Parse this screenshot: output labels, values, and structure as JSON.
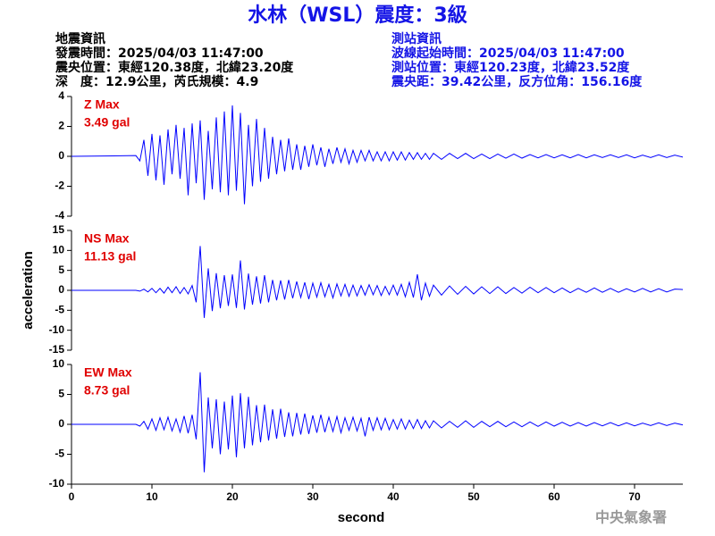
{
  "header": {
    "title": "水林（WSL）震度：3級",
    "left": [
      "地震資訊",
      "發震時間：2025/04/03 11:47:00",
      "震央位置：東經120.38度，北緯23.20度",
      "深　度：12.9公里，芮氏規模：4.9"
    ],
    "right": [
      "測站資訊",
      "波線起始時間：2025/04/03 11:47:00",
      "測站位置：東經120.23度，北緯23.52度",
      "震央距：39.42公里，反方位角：156.16度"
    ]
  },
  "footer": "中央氣象署",
  "chart_data": [
    {
      "type": "line",
      "color": "#0000ff",
      "annotations": [
        "Z Max",
        "3.49 gal"
      ],
      "xlim": [
        0,
        76
      ],
      "ylim": [
        -4,
        4
      ],
      "yticks": [
        -4,
        -2,
        0,
        2,
        4
      ],
      "x": [
        0,
        8,
        8.5,
        9,
        9.5,
        10,
        10.5,
        11,
        11.5,
        12,
        12.5,
        13,
        13.5,
        14,
        14.5,
        15,
        15.5,
        16,
        16.5,
        17,
        17.5,
        18,
        18.5,
        19,
        19.5,
        20,
        20.5,
        21,
        21.5,
        22,
        22.5,
        23,
        23.5,
        24,
        24.5,
        25,
        25.5,
        26,
        26.5,
        27,
        27.5,
        28,
        28.5,
        29,
        29.5,
        30,
        30.5,
        31,
        31.5,
        32,
        32.5,
        33,
        33.5,
        34,
        34.5,
        35,
        35.5,
        36,
        36.5,
        37,
        37.5,
        38,
        38.5,
        39,
        39.5,
        40,
        40.5,
        41,
        41.5,
        42,
        42.5,
        43,
        43.5,
        44,
        44.5,
        45,
        46,
        47,
        48,
        49,
        50,
        51,
        52,
        53,
        54,
        55,
        56,
        57,
        58,
        59,
        60,
        61,
        62,
        63,
        64,
        65,
        66,
        67,
        68,
        69,
        70,
        71,
        72,
        73,
        74,
        75,
        76
      ],
      "values": [
        0,
        0.05,
        -0.3,
        1.1,
        -1.3,
        1.5,
        -1.6,
        1.4,
        -1.9,
        1.8,
        -1.2,
        2.1,
        -1.5,
        1.9,
        -2.6,
        2.2,
        -1.8,
        2.4,
        -2.9,
        1.7,
        -2.2,
        2.6,
        -2.4,
        3.0,
        -2.6,
        3.4,
        -2.3,
        2.9,
        -3.2,
        2.1,
        -2.0,
        2.5,
        -1.7,
        1.9,
        -1.5,
        1.3,
        -1.2,
        1.1,
        -1.0,
        1.2,
        -0.9,
        0.8,
        -0.9,
        0.7,
        -0.7,
        0.8,
        -0.6,
        0.6,
        -0.7,
        0.5,
        -0.5,
        0.6,
        -0.4,
        0.5,
        -0.5,
        0.4,
        -0.4,
        0.4,
        -0.3,
        0.4,
        -0.3,
        0.3,
        -0.3,
        0.3,
        -0.3,
        0.3,
        -0.25,
        0.3,
        -0.25,
        0.25,
        -0.2,
        0.25,
        -0.2,
        0.2,
        -0.2,
        0.2,
        -0.2,
        0.2,
        -0.15,
        0.2,
        -0.15,
        0.15,
        -0.15,
        0.15,
        -0.12,
        0.15,
        -0.12,
        0.12,
        -0.1,
        0.12,
        -0.1,
        0.1,
        -0.1,
        0.12,
        -0.1,
        0.1,
        -0.08,
        0.1,
        -0.08,
        0.1,
        -0.1,
        0.08,
        -0.08,
        0.1,
        -0.08,
        0.08,
        -0.05
      ]
    },
    {
      "type": "line",
      "color": "#0000ff",
      "annotations": [
        "NS Max",
        "11.13 gal"
      ],
      "y_label": "acceleration",
      "xlim": [
        0,
        76
      ],
      "ylim": [
        -15,
        15
      ],
      "yticks": [
        -15,
        -10,
        -5,
        0,
        5,
        10,
        15
      ],
      "x": [
        0,
        8,
        8.5,
        9,
        9.5,
        10,
        10.5,
        11,
        11.5,
        12,
        12.5,
        13,
        13.5,
        14,
        14.5,
        15,
        15.5,
        16,
        16.5,
        17,
        17.5,
        18,
        18.5,
        19,
        19.5,
        20,
        20.5,
        21,
        21.5,
        22,
        22.5,
        23,
        23.5,
        24,
        24.5,
        25,
        25.5,
        26,
        26.5,
        27,
        27.5,
        28,
        28.5,
        29,
        29.5,
        30,
        30.5,
        31,
        31.5,
        32,
        32.5,
        33,
        33.5,
        34,
        34.5,
        35,
        35.5,
        36,
        36.5,
        37,
        37.5,
        38,
        38.5,
        39,
        39.5,
        40,
        40.5,
        41,
        41.5,
        42,
        42.5,
        43,
        43.5,
        44,
        44.5,
        45,
        46,
        47,
        48,
        49,
        50,
        51,
        52,
        53,
        54,
        55,
        56,
        57,
        58,
        59,
        60,
        61,
        62,
        63,
        64,
        65,
        66,
        67,
        68,
        69,
        70,
        71,
        72,
        73,
        74,
        75,
        76
      ],
      "values": [
        0,
        0,
        -0.2,
        0.3,
        -0.4,
        0.5,
        -0.6,
        0.5,
        -0.7,
        0.8,
        -0.6,
        0.9,
        -0.8,
        0.7,
        -0.9,
        1.2,
        -3.0,
        11.1,
        -6.9,
        5.5,
        -5.2,
        4.3,
        -4.5,
        3.8,
        -3.9,
        4.0,
        -4.4,
        7.5,
        -4.8,
        4.2,
        -3.6,
        3.5,
        -3.3,
        3.8,
        -3.0,
        2.6,
        -2.5,
        2.5,
        -2.3,
        2.6,
        -2.0,
        2.2,
        -1.8,
        2.0,
        -2.2,
        1.8,
        -1.7,
        1.9,
        -1.6,
        1.5,
        -1.9,
        1.6,
        -1.4,
        1.5,
        -1.5,
        1.3,
        -1.4,
        1.2,
        -1.2,
        1.4,
        -1.1,
        1.2,
        -1.3,
        1.0,
        -1.1,
        1.3,
        -1.2,
        1.5,
        -1.6,
        2.0,
        -1.8,
        4.0,
        -2.5,
        1.8,
        -1.5,
        1.3,
        -1.2,
        1.1,
        -1.0,
        1.0,
        -0.9,
        0.9,
        -0.8,
        0.9,
        -0.8,
        0.7,
        -0.7,
        0.8,
        -0.6,
        0.7,
        -0.6,
        0.6,
        -0.6,
        0.5,
        -0.5,
        0.6,
        -0.5,
        0.5,
        -0.5,
        0.4,
        -0.4,
        0.5,
        -0.4,
        0.4,
        -0.4,
        0.3,
        0.2
      ]
    },
    {
      "type": "line",
      "color": "#0000ff",
      "annotations": [
        "EW Max",
        "8.73 gal"
      ],
      "x_label": "second",
      "xlim": [
        0,
        76
      ],
      "ylim": [
        -10,
        10
      ],
      "yticks": [
        -10,
        -5,
        0,
        5,
        10
      ],
      "xticks": [
        0,
        10,
        20,
        30,
        40,
        50,
        60,
        70
      ],
      "x": [
        0,
        8,
        8.5,
        9,
        9.5,
        10,
        10.5,
        11,
        11.5,
        12,
        12.5,
        13,
        13.5,
        14,
        14.5,
        15,
        15.5,
        16,
        16.5,
        17,
        17.5,
        18,
        18.5,
        19,
        19.5,
        20,
        20.5,
        21,
        21.5,
        22,
        22.5,
        23,
        23.5,
        24,
        24.5,
        25,
        25.5,
        26,
        26.5,
        27,
        27.5,
        28,
        28.5,
        29,
        29.5,
        30,
        30.5,
        31,
        31.5,
        32,
        32.5,
        33,
        33.5,
        34,
        34.5,
        35,
        35.5,
        36,
        36.5,
        37,
        37.5,
        38,
        38.5,
        39,
        39.5,
        40,
        40.5,
        41,
        41.5,
        42,
        42.5,
        43,
        43.5,
        44,
        44.5,
        45,
        46,
        47,
        48,
        49,
        50,
        51,
        52,
        53,
        54,
        55,
        56,
        57,
        58,
        59,
        60,
        61,
        62,
        63,
        64,
        65,
        66,
        67,
        68,
        69,
        70,
        71,
        72,
        73,
        74,
        75,
        76
      ],
      "values": [
        0,
        0,
        -0.3,
        0.5,
        -0.8,
        0.9,
        -1.0,
        1.1,
        -0.9,
        1.2,
        -1.1,
        0.9,
        -1.3,
        1.4,
        -1.5,
        1.6,
        -2.5,
        8.7,
        -8.0,
        4.5,
        -4.0,
        4.2,
        -5.0,
        3.8,
        -4.2,
        4.8,
        -5.5,
        5.2,
        -4.0,
        4.6,
        -3.5,
        3.2,
        -3.0,
        3.3,
        -2.7,
        2.5,
        -2.4,
        2.6,
        -2.1,
        2.0,
        -2.0,
        1.9,
        -1.7,
        1.8,
        -1.6,
        1.5,
        -1.4,
        1.6,
        -1.3,
        1.2,
        -1.2,
        1.3,
        -1.4,
        1.1,
        -1.0,
        1.2,
        -1.1,
        1.0,
        -2.0,
        1.2,
        -1.0,
        1.1,
        -0.9,
        1.0,
        -0.9,
        0.8,
        -0.8,
        0.9,
        -0.8,
        0.7,
        -0.7,
        0.8,
        -0.7,
        0.6,
        -0.6,
        0.6,
        -0.6,
        0.5,
        -0.5,
        0.6,
        -0.5,
        0.5,
        -0.4,
        0.5,
        -0.4,
        0.4,
        -0.4,
        0.4,
        -0.35,
        0.4,
        -0.3,
        0.35,
        -0.3,
        0.3,
        -0.3,
        0.3,
        -0.25,
        0.3,
        -0.25,
        0.25,
        -0.25,
        0.2,
        -0.2,
        0.25,
        -0.2,
        0.2,
        -0.1
      ]
    }
  ]
}
